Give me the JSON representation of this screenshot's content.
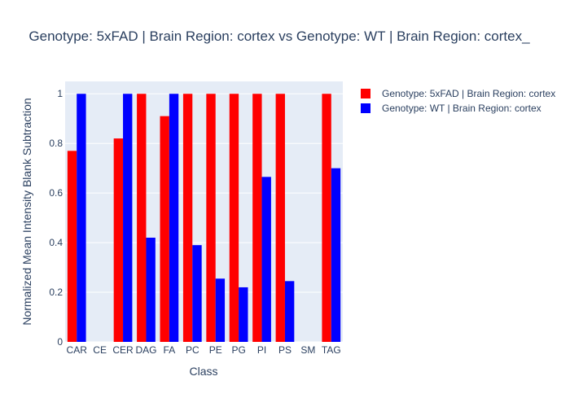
{
  "chart_data": {
    "type": "bar",
    "title": "Genotype: 5xFAD | Brain Region: cortex vs Genotype: WT | Brain Region: cortex_",
    "xlabel": "Class",
    "ylabel": "Normalized Mean Intensity Blank Subtraction",
    "categories": [
      "CAR",
      "CE",
      "CER",
      "DAG",
      "FA",
      "PC",
      "PE",
      "PG",
      "PI",
      "PS",
      "SM",
      "TAG"
    ],
    "ylim": [
      0,
      1.05
    ],
    "yticks": [
      {
        "value": 0,
        "label": "0"
      },
      {
        "value": 0.2,
        "label": "0.2"
      },
      {
        "value": 0.4,
        "label": "0.4"
      },
      {
        "value": 0.6,
        "label": "0.6"
      },
      {
        "value": 0.8,
        "label": "0.8"
      },
      {
        "value": 1,
        "label": "1"
      }
    ],
    "grid": true,
    "legend_position": "top-right",
    "series": [
      {
        "name": "Genotype: 5xFAD | Brain Region: cortex",
        "color": "#ff0000",
        "values": [
          0.77,
          null,
          0.82,
          1.0,
          0.91,
          1.0,
          1.0,
          1.0,
          1.0,
          1.0,
          null,
          1.0
        ]
      },
      {
        "name": "Genotype: WT | Brain Region: cortex",
        "color": "#0000ff",
        "values": [
          1.0,
          null,
          1.0,
          0.42,
          1.0,
          0.39,
          0.255,
          0.22,
          0.665,
          0.245,
          null,
          0.7
        ]
      }
    ]
  }
}
